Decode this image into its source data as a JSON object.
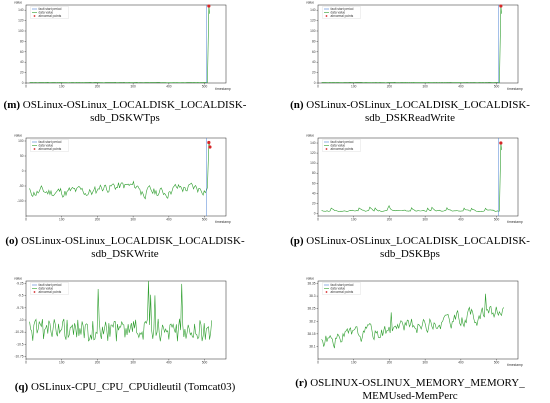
{
  "colors": {
    "line": "#2e9e2e",
    "fault": "#4a7fd4",
    "anomaly": "#d62728"
  },
  "legend_labels": [
    "fault start period",
    "data value",
    "abnormal points"
  ],
  "chart_data": [
    {
      "id": "m",
      "type": "line",
      "caption_letter": "(m)",
      "caption": "OSLinux-OSLinux_LOCALDISK_LOCALDISK-sdb_DSKWTps",
      "ylabel": "value",
      "xlabel": "timestamp",
      "xlim": [
        0,
        560
      ],
      "ylim": [
        0,
        150
      ],
      "xticks": [
        0,
        100,
        200,
        300,
        400,
        500
      ],
      "yticks": [
        0,
        20,
        40,
        60,
        80,
        100,
        120,
        140
      ],
      "baseline": 1,
      "noise": 0.4,
      "seed": 3,
      "spike": {
        "x": 512,
        "y": 148
      },
      "fault_x": 505,
      "anomalies": [
        [
          512,
          148
        ]
      ]
    },
    {
      "id": "n",
      "type": "line",
      "caption_letter": "(n)",
      "caption": "OSLinux-OSLinux_LOCALDISK_LOCALDISK-sdb_DSKReadWrite",
      "ylabel": "value",
      "xlabel": "timestamp",
      "xlim": [
        0,
        560
      ],
      "ylim": [
        0,
        150
      ],
      "xticks": [
        0,
        100,
        200,
        300,
        400,
        500
      ],
      "yticks": [
        0,
        20,
        40,
        60,
        80,
        100,
        120,
        140
      ],
      "baseline": 1,
      "noise": 0.4,
      "seed": 5,
      "spike": {
        "x": 512,
        "y": 148
      },
      "fault_x": 505,
      "anomalies": [
        [
          512,
          148
        ]
      ]
    },
    {
      "id": "o",
      "type": "line",
      "caption_letter": "(o)",
      "caption": "OSLinux-OSLinux_LOCALDISK_LOCALDISK-sdb_DSKWrite",
      "ylabel": "value",
      "xlabel": "timestamp",
      "xlim": [
        0,
        560
      ],
      "ylim": [
        -150,
        110
      ],
      "xticks": [
        0,
        100,
        200,
        300,
        400,
        500
      ],
      "yticks": [
        -100,
        -50,
        0,
        50,
        100
      ],
      "baseline": -70,
      "noise": 30,
      "seed": 11,
      "spike": {
        "x": 512,
        "y": 95
      },
      "fault_x": 505,
      "anomalies": [
        [
          512,
          95
        ],
        [
          515,
          80
        ]
      ]
    },
    {
      "id": "p",
      "type": "line",
      "caption_letter": "(p)",
      "caption": "OSLinux-OSLinux_LOCALDISK_LOCALDISK-sdb_DSKBps",
      "ylabel": "value",
      "xlabel": "timestamp",
      "xlim": [
        0,
        560
      ],
      "ylim": [
        -5,
        150
      ],
      "xticks": [
        0,
        100,
        200,
        300,
        400,
        500
      ],
      "yticks": [
        0,
        20,
        40,
        60,
        80,
        100,
        120,
        140
      ],
      "baseline": 5,
      "noise": 2,
      "seed": 17,
      "spike": {
        "x": 512,
        "y": 140
      },
      "fault_x": 505,
      "anomalies": [
        [
          512,
          140
        ]
      ]
    },
    {
      "id": "q",
      "type": "line",
      "caption_letter": "(q)",
      "caption": "OSLinux-CPU_CPU_CPUidleutil (Tomcat03)",
      "ylabel": "value",
      "xlabel": "",
      "xlim": [
        0,
        560
      ],
      "ylim": [
        -10.8,
        -9.2
      ],
      "xticks": [
        0,
        100,
        200,
        300,
        400,
        500
      ],
      "yticks": [
        -10.75,
        -10.5,
        -10.25,
        -10.0,
        -9.75,
        -9.5,
        -9.25
      ],
      "baseline": -10.2,
      "noise": 0.3,
      "seed": 23,
      "spike": null,
      "fault_x": null,
      "anomalies": []
    },
    {
      "id": "r",
      "type": "line",
      "caption_letter": "(r)",
      "caption": "OSLINUX-OSLINUX_MEMORY_MEMORY_ MEMUsed-MemPerc",
      "ylabel": "value",
      "xlabel": "timestamp",
      "xlim": [
        0,
        560
      ],
      "ylim": [
        38.05,
        38.36
      ],
      "xticks": [
        0,
        100,
        200,
        300,
        400,
        500
      ],
      "yticks": [
        38.1,
        38.15,
        38.2,
        38.25,
        38.3,
        38.35
      ],
      "baseline": 38.12,
      "noise": 0.05,
      "seed": 31,
      "spike": null,
      "fault_x": null,
      "anomalies": []
    }
  ]
}
